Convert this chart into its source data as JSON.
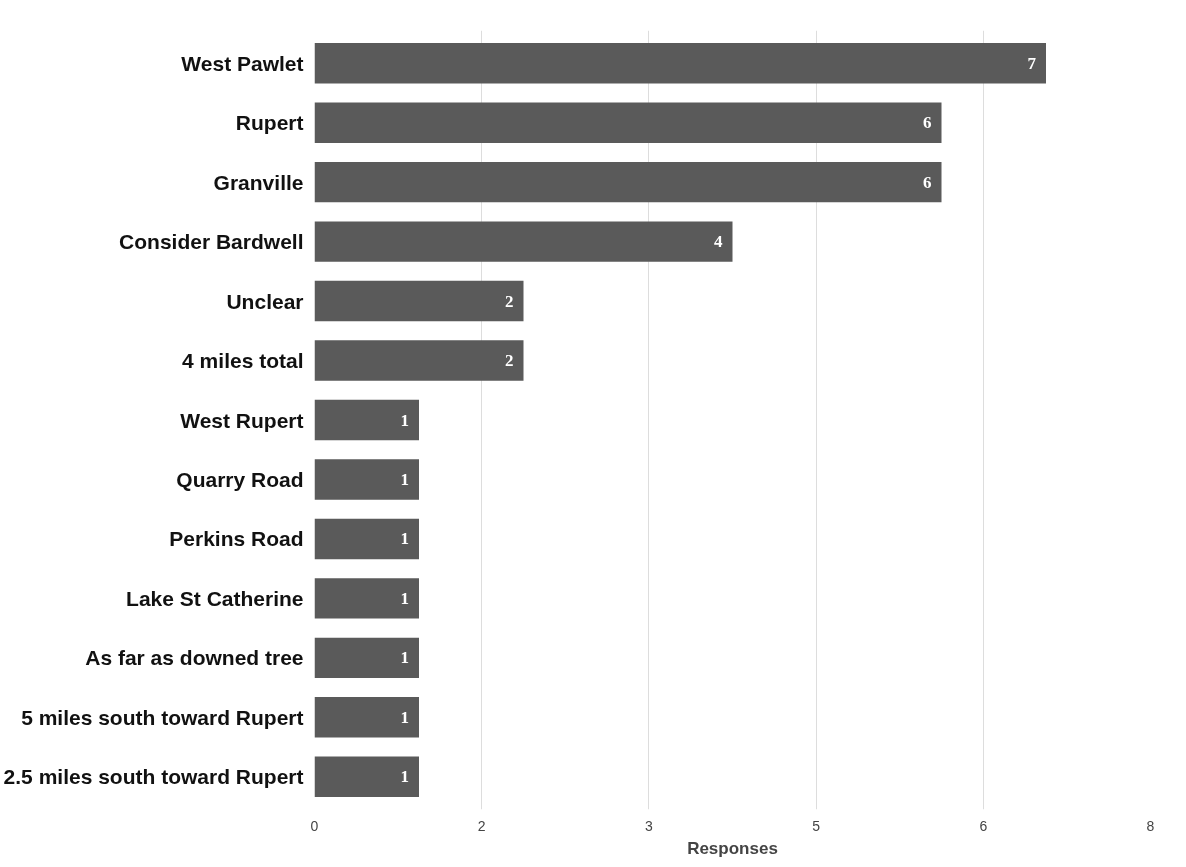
{
  "chart_data": {
    "type": "bar",
    "orientation": "horizontal",
    "xlabel": "Responses",
    "categories": [
      "West Pawlet",
      "Rupert",
      "Granville",
      "Consider Bardwell",
      "Unclear",
      "4 miles total",
      "West Rupert",
      "Quarry Road",
      "Perkins Road",
      "Lake St Catherine",
      "As far as downed tree",
      "5 miles south toward Rupert",
      "2.5 miles south toward Rupert"
    ],
    "values": [
      7,
      6,
      6,
      4,
      2,
      2,
      1,
      1,
      1,
      1,
      1,
      1,
      1
    ],
    "color": "#5a5a5a",
    "data_labels": true,
    "grid": "x",
    "xlim": [
      0,
      8
    ],
    "xticks": [
      0,
      {
        "value": 1.6,
        "label": "2"
      },
      {
        "value": 3.2,
        "label": "3"
      },
      {
        "value": 4.8,
        "label": "5"
      },
      {
        "value": 6.4,
        "label": "6"
      },
      8
    ]
  }
}
